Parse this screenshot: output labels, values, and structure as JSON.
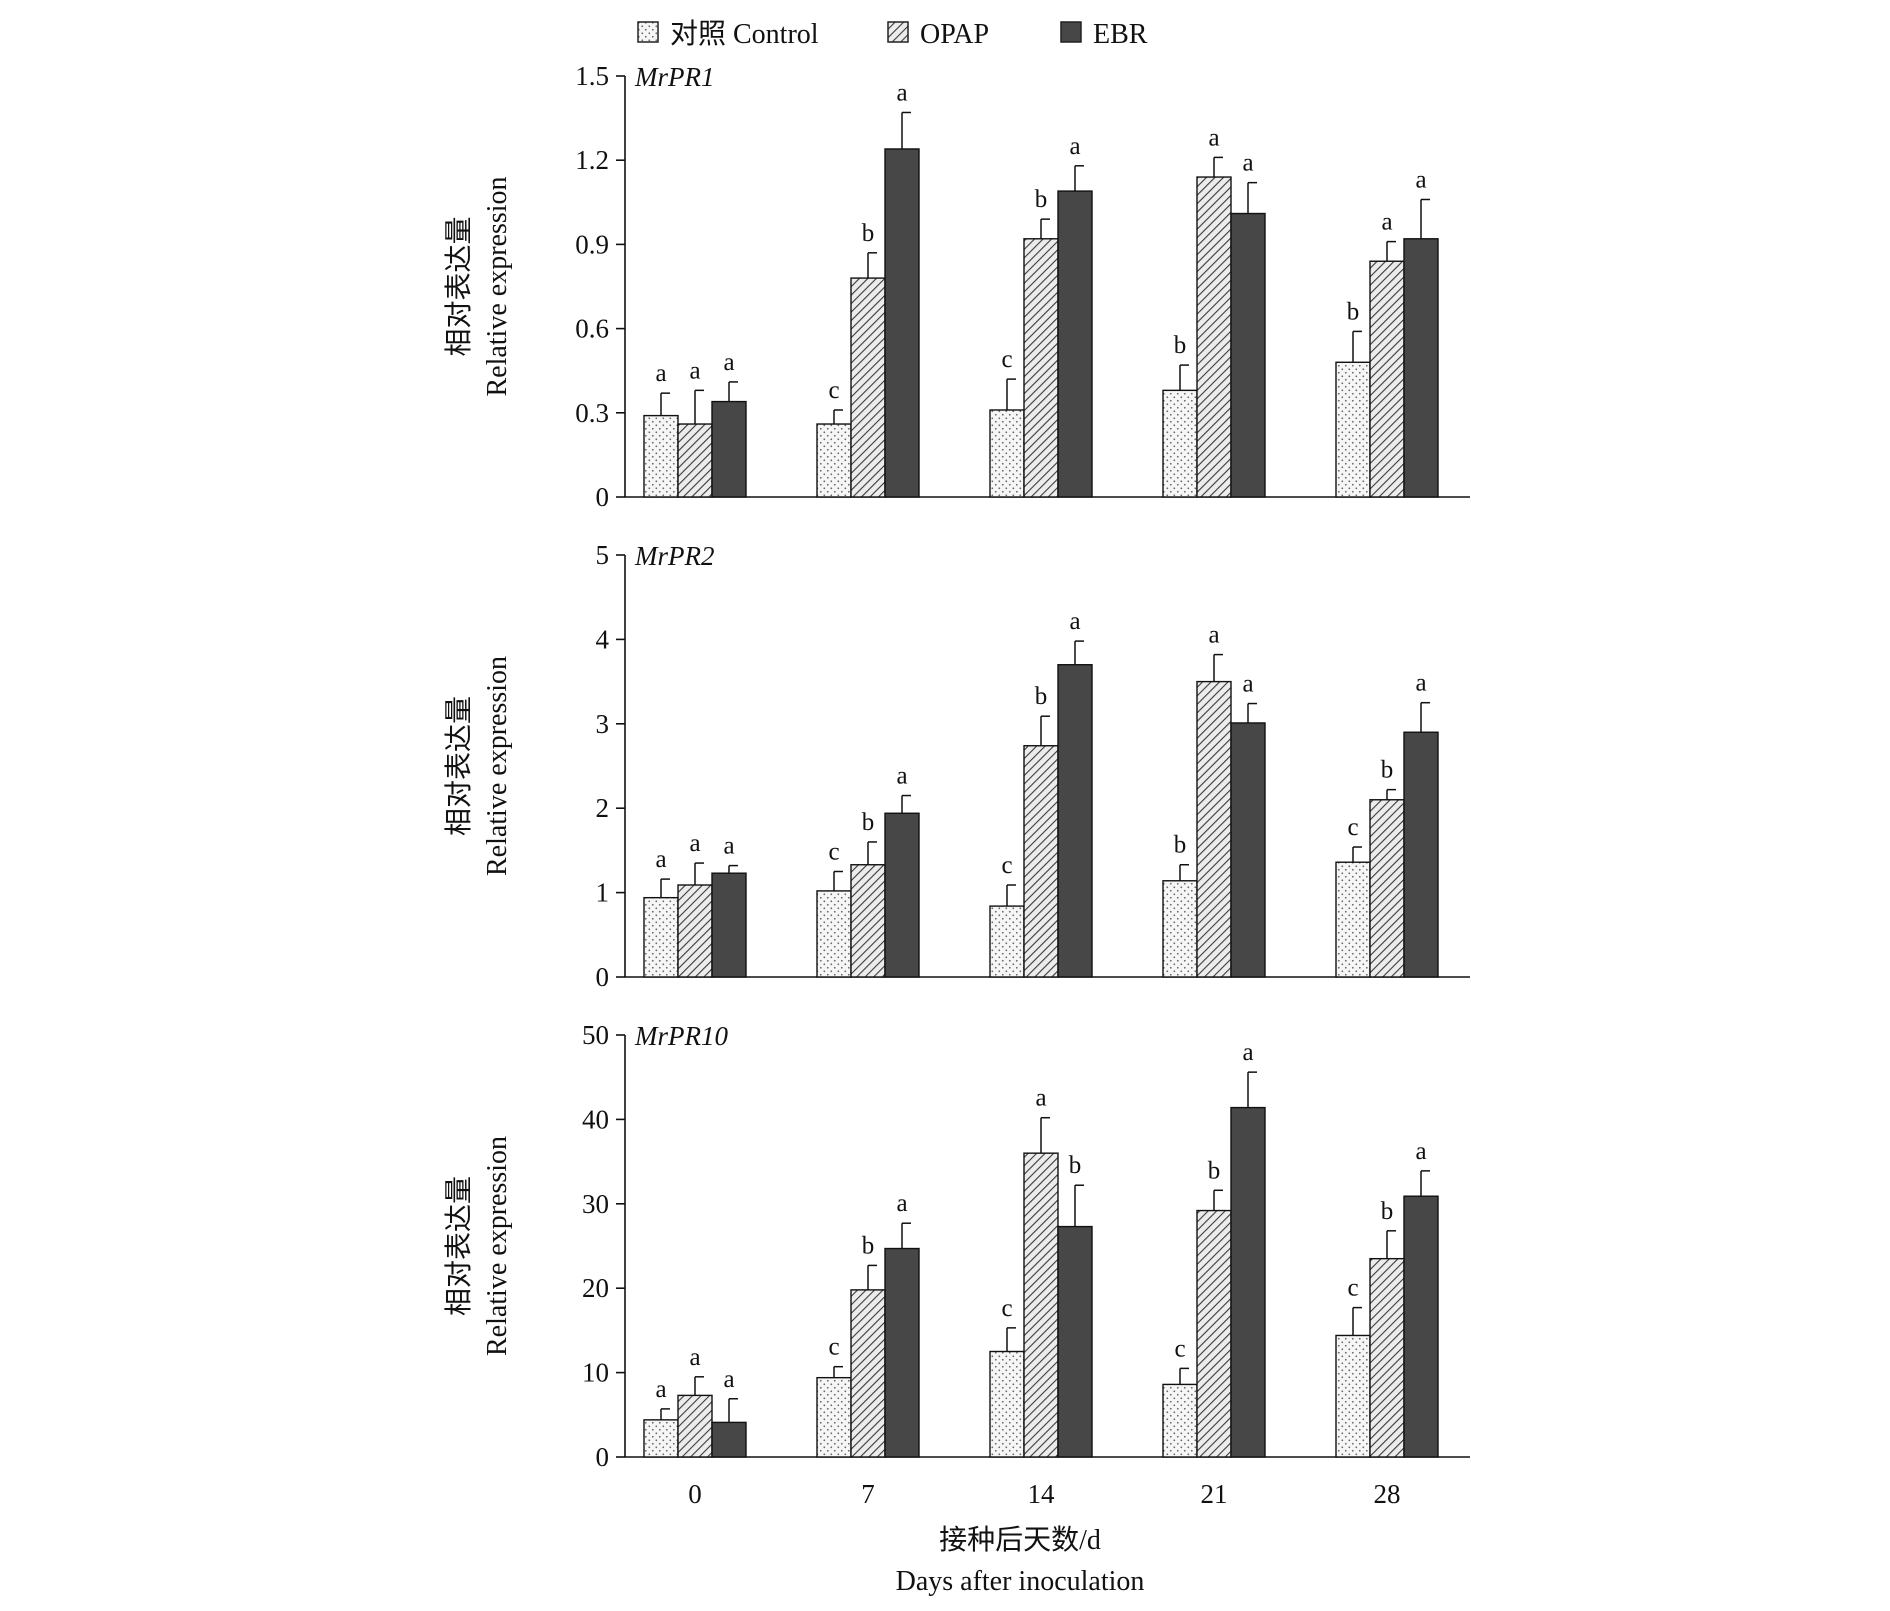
{
  "legend": {
    "items": [
      {
        "label": "对照 Control",
        "pattern": "dots",
        "color": "#f4f4f4"
      },
      {
        "label": "OPAP",
        "pattern": "hatch",
        "color": "#d9d9d9"
      },
      {
        "label": "EBR",
        "pattern": "solid",
        "color": "#474747"
      }
    ]
  },
  "xaxis": {
    "label_cn": "接种后天数/d",
    "label_en": "Days after inoculation"
  },
  "chart_data": [
    {
      "type": "bar",
      "title": "MrPR1",
      "ylabel_cn": "相对表达量",
      "ylabel_en": "Relative expression",
      "ylim": [
        0,
        1.5
      ],
      "yticks": [
        "0",
        "0.3",
        "0.6",
        "0.9",
        "1.2",
        "1.5"
      ],
      "categories": [
        "0",
        "7",
        "14",
        "21",
        "28"
      ],
      "series": [
        {
          "name": "对照 Control",
          "values": [
            0.29,
            0.26,
            0.31,
            0.38,
            0.48
          ],
          "errors": [
            0.08,
            0.05,
            0.11,
            0.09,
            0.11
          ],
          "letters": [
            "a",
            "c",
            "c",
            "b",
            "b"
          ]
        },
        {
          "name": "OPAP",
          "values": [
            0.26,
            0.78,
            0.92,
            1.14,
            0.84
          ],
          "errors": [
            0.12,
            0.09,
            0.07,
            0.07,
            0.07
          ],
          "letters": [
            "a",
            "b",
            "b",
            "a",
            "a"
          ]
        },
        {
          "name": "EBR",
          "values": [
            0.34,
            1.24,
            1.09,
            1.01,
            0.92
          ],
          "errors": [
            0.07,
            0.13,
            0.09,
            0.11,
            0.14
          ],
          "letters": [
            "a",
            "a",
            "a",
            "a",
            "a"
          ]
        }
      ]
    },
    {
      "type": "bar",
      "title": "MrPR2",
      "ylabel_cn": "相对表达量",
      "ylabel_en": "Relative expression",
      "ylim": [
        0,
        5
      ],
      "yticks": [
        "0",
        "1",
        "2",
        "3",
        "4",
        "5"
      ],
      "categories": [
        "0",
        "7",
        "14",
        "21",
        "28"
      ],
      "series": [
        {
          "name": "对照 Control",
          "values": [
            0.94,
            1.02,
            0.84,
            1.14,
            1.36
          ],
          "errors": [
            0.22,
            0.23,
            0.25,
            0.19,
            0.18
          ],
          "letters": [
            "a",
            "c",
            "c",
            "b",
            "c"
          ]
        },
        {
          "name": "OPAP",
          "values": [
            1.09,
            1.33,
            2.74,
            3.5,
            2.1
          ],
          "errors": [
            0.26,
            0.27,
            0.35,
            0.32,
            0.12
          ],
          "letters": [
            "a",
            "b",
            "b",
            "a",
            "b"
          ]
        },
        {
          "name": "EBR",
          "values": [
            1.23,
            1.94,
            3.7,
            3.01,
            2.9
          ],
          "errors": [
            0.09,
            0.21,
            0.28,
            0.23,
            0.35
          ],
          "letters": [
            "a",
            "a",
            "a",
            "a",
            "a"
          ]
        }
      ]
    },
    {
      "type": "bar",
      "title": "MrPR10",
      "ylabel_cn": "相对表达量",
      "ylabel_en": "Relative expression",
      "ylim": [
        0,
        50
      ],
      "yticks": [
        "0",
        "10",
        "20",
        "30",
        "40",
        "50"
      ],
      "categories": [
        "0",
        "7",
        "14",
        "21",
        "28"
      ],
      "series": [
        {
          "name": "对照 Control",
          "values": [
            4.4,
            9.4,
            12.5,
            8.6,
            14.4
          ],
          "errors": [
            1.3,
            1.3,
            2.8,
            1.9,
            3.3
          ],
          "letters": [
            "a",
            "c",
            "c",
            "c",
            "c"
          ]
        },
        {
          "name": "OPAP",
          "values": [
            7.3,
            19.8,
            36.0,
            29.2,
            23.5
          ],
          "errors": [
            2.2,
            2.9,
            4.2,
            2.4,
            3.3
          ],
          "letters": [
            "a",
            "b",
            "a",
            "b",
            "b"
          ]
        },
        {
          "name": "EBR",
          "values": [
            4.1,
            24.7,
            27.3,
            41.4,
            30.9
          ],
          "errors": [
            2.8,
            3.0,
            4.9,
            4.2,
            3.0
          ],
          "letters": [
            "a",
            "a",
            "b",
            "a",
            "a"
          ]
        }
      ]
    }
  ]
}
